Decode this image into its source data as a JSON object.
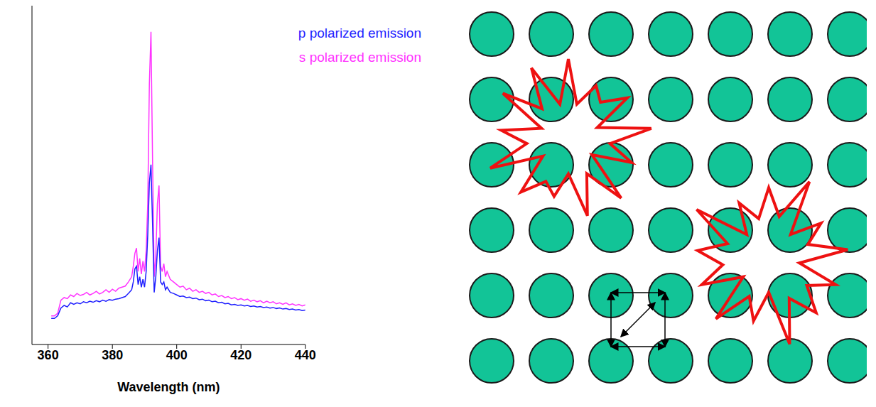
{
  "chart_data": {
    "type": "line",
    "x_label": "Wavelength (nm)",
    "x": [
      361,
      362,
      363,
      364,
      365,
      366,
      367,
      368,
      369,
      370,
      371,
      372,
      373,
      374,
      375,
      376,
      377,
      378,
      379,
      380,
      381,
      382,
      383,
      384,
      385,
      386,
      386.5,
      387,
      387.5,
      388,
      388.5,
      389,
      389.5,
      390,
      390.5,
      391,
      391.5,
      392,
      392.5,
      393,
      393.5,
      394,
      394.5,
      395,
      395.5,
      396,
      396.5,
      397,
      398,
      399,
      400,
      401,
      402,
      403,
      404,
      405,
      406,
      407,
      408,
      409,
      410,
      411,
      412,
      413,
      414,
      415,
      416,
      417,
      418,
      419,
      420,
      421,
      422,
      423,
      424,
      425,
      426,
      427,
      428,
      429,
      430,
      431,
      432,
      433,
      434,
      435,
      436,
      437,
      438,
      439,
      440
    ],
    "series": [
      {
        "name": "s polarized emission",
        "color": "#ff33ff",
        "values": [
          0.05,
          0.05,
          0.1,
          0.35,
          0.4,
          0.38,
          0.45,
          0.42,
          0.48,
          0.44,
          0.46,
          0.5,
          0.45,
          0.48,
          0.52,
          0.47,
          0.5,
          0.55,
          0.5,
          0.56,
          0.52,
          0.58,
          0.6,
          0.62,
          0.7,
          0.8,
          1.0,
          1.25,
          1.35,
          0.9,
          1.15,
          0.85,
          1.1,
          0.9,
          1.3,
          2.2,
          4.5,
          5.5,
          3.0,
          0.8,
          1.2,
          2.2,
          2.55,
          1.0,
          0.9,
          1.05,
          0.8,
          0.9,
          0.75,
          0.7,
          0.65,
          0.6,
          0.62,
          0.55,
          0.58,
          0.52,
          0.55,
          0.5,
          0.52,
          0.48,
          0.5,
          0.45,
          0.47,
          0.42,
          0.44,
          0.4,
          0.42,
          0.38,
          0.4,
          0.36,
          0.38,
          0.35,
          0.37,
          0.33,
          0.35,
          0.32,
          0.34,
          0.3,
          0.33,
          0.3,
          0.32,
          0.28,
          0.3,
          0.27,
          0.3,
          0.26,
          0.28,
          0.25,
          0.27,
          0.24,
          0.26
        ]
      },
      {
        "name": "p polarized emission",
        "color": "#1f1fff",
        "values": [
          0.0,
          0.0,
          0.05,
          0.2,
          0.25,
          0.22,
          0.3,
          0.27,
          0.3,
          0.28,
          0.32,
          0.3,
          0.33,
          0.31,
          0.34,
          0.32,
          0.35,
          0.33,
          0.36,
          0.35,
          0.37,
          0.38,
          0.4,
          0.42,
          0.48,
          0.55,
          0.7,
          0.95,
          1.0,
          0.65,
          0.8,
          0.6,
          0.75,
          0.6,
          0.9,
          1.6,
          2.6,
          2.95,
          1.8,
          0.5,
          0.8,
          1.3,
          1.55,
          0.7,
          0.65,
          0.7,
          0.55,
          0.6,
          0.5,
          0.48,
          0.45,
          0.42,
          0.43,
          0.4,
          0.41,
          0.38,
          0.39,
          0.36,
          0.37,
          0.34,
          0.35,
          0.32,
          0.33,
          0.3,
          0.31,
          0.28,
          0.29,
          0.26,
          0.27,
          0.25,
          0.26,
          0.24,
          0.25,
          0.23,
          0.24,
          0.22,
          0.23,
          0.21,
          0.22,
          0.2,
          0.21,
          0.19,
          0.2,
          0.18,
          0.19,
          0.17,
          0.18,
          0.16,
          0.17,
          0.15,
          0.16
        ]
      }
    ],
    "xlim": [
      355,
      440
    ],
    "xticks": [
      360,
      380,
      400,
      420,
      440
    ],
    "ylim": [
      -0.5,
      6
    ],
    "yticks": [
      0,
      1,
      2,
      3,
      4,
      5,
      6
    ],
    "tick_labels": "x",
    "grid": false,
    "legend": "upper right"
  }
}
